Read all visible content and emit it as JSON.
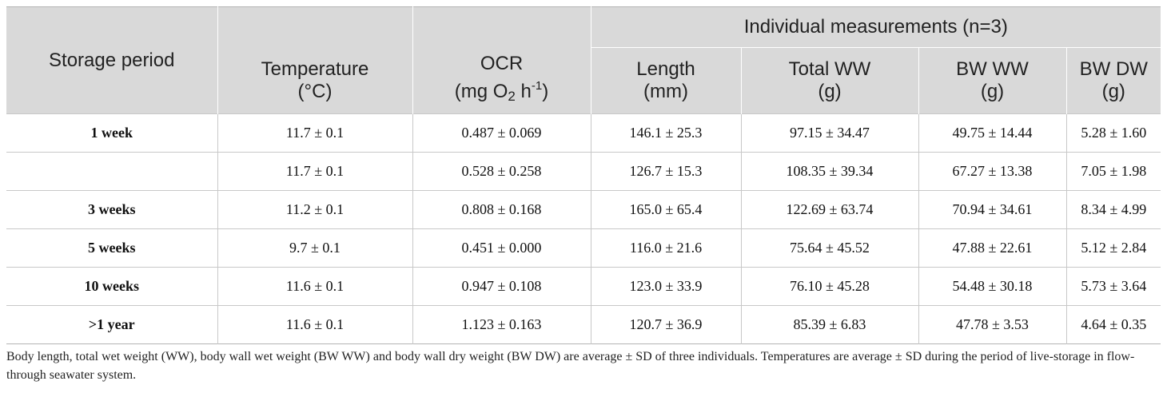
{
  "table": {
    "group_header": "Individual measurements (n=3)",
    "columns": [
      {
        "line1": "Storage period",
        "line2": ""
      },
      {
        "line1": "Temperature",
        "line2": "(°C)"
      },
      {
        "line1": "OCR",
        "line2_pre": "(mg O",
        "line2_sub": "2",
        "line2_mid": " h",
        "line2_sup": "-1",
        "line2_post": ")"
      },
      {
        "line1": "Length",
        "line2": "(mm)"
      },
      {
        "line1": "Total WW",
        "line2": "(g)"
      },
      {
        "line1": "BW WW",
        "line2": "(g)"
      },
      {
        "line1": "BW DW",
        "line2": "(g)"
      }
    ],
    "rows": [
      {
        "period": "1 week",
        "temperature": "11.7 ± 0.1",
        "ocr": "0.487 ± 0.069",
        "length": "146.1 ± 25.3",
        "total_ww": "97.15 ± 34.47",
        "bw_ww": "49.75 ± 14.44",
        "bw_dw": "5.28 ± 1.60"
      },
      {
        "period": "",
        "temperature": "11.7 ± 0.1",
        "ocr": "0.528 ± 0.258",
        "length": "126.7 ± 15.3",
        "total_ww": "108.35 ± 39.34",
        "bw_ww": "67.27 ± 13.38",
        "bw_dw": "7.05 ± 1.98"
      },
      {
        "period": "3 weeks",
        "temperature": "11.2 ± 0.1",
        "ocr": "0.808 ± 0.168",
        "length": "165.0 ± 65.4",
        "total_ww": "122.69 ± 63.74",
        "bw_ww": "70.94 ± 34.61",
        "bw_dw": "8.34 ± 4.99"
      },
      {
        "period": "5 weeks",
        "temperature": "9.7 ± 0.1",
        "ocr": "0.451 ± 0.000",
        "length": "116.0 ± 21.6",
        "total_ww": "75.64 ± 45.52",
        "bw_ww": "47.88 ± 22.61",
        "bw_dw": "5.12 ± 2.84"
      },
      {
        "period": "10 weeks",
        "temperature": "11.6 ± 0.1",
        "ocr": "0.947 ± 0.108",
        "length": "123.0 ± 33.9",
        "total_ww": "76.10 ± 45.28",
        "bw_ww": "54.48 ± 30.18",
        "bw_dw": "5.73 ± 3.64"
      },
      {
        "period": ">1 year",
        "temperature": "11.6 ± 0.1",
        "ocr": "1.123 ± 0.163",
        "length": "120.7 ± 36.9",
        "total_ww": "85.39 ± 6.83",
        "bw_ww": "47.78 ± 3.53",
        "bw_dw": "4.64 ± 0.35"
      }
    ]
  },
  "footnote": "Body length, total wet weight (WW), body wall wet weight (BW WW) and body wall dry weight (BW DW) are average ± SD of three individuals. Temperatures are average ± SD during the period of live-storage in flow-through seawater system."
}
